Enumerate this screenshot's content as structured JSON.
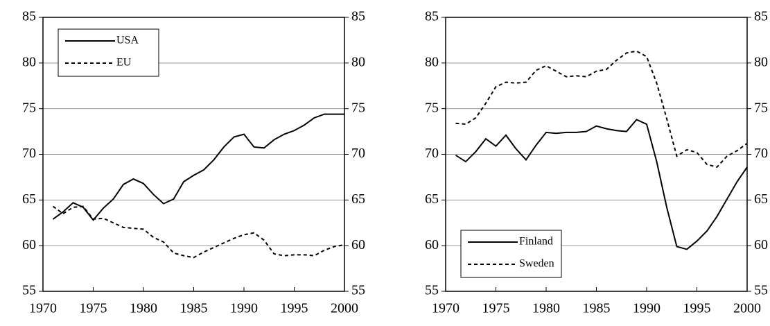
{
  "chart_data": [
    {
      "type": "line",
      "x": [
        1971,
        1972,
        1973,
        1974,
        1975,
        1976,
        1977,
        1978,
        1979,
        1980,
        1981,
        1982,
        1983,
        1984,
        1985,
        1986,
        1987,
        1988,
        1989,
        1990,
        1991,
        1992,
        1993,
        1994,
        1995,
        1996,
        1997,
        1998,
        1999,
        2000
      ],
      "series": [
        {
          "name": "USA",
          "color": "#000000",
          "linestyle": "solid",
          "values": [
            62.9,
            63.7,
            64.7,
            64.2,
            62.8,
            64.1,
            65.1,
            66.7,
            67.3,
            66.8,
            65.6,
            64.6,
            65.1,
            67.0,
            67.7,
            68.3,
            69.4,
            70.8,
            71.9,
            72.2,
            70.8,
            70.7,
            71.6,
            72.2,
            72.6,
            73.2,
            74.0,
            74.4,
            74.4,
            74.4
          ]
        },
        {
          "name": "EU",
          "color": "#000000",
          "linestyle": "dashed",
          "values": [
            64.3,
            63.5,
            64.2,
            64.3,
            62.9,
            63.0,
            62.5,
            62.0,
            61.9,
            61.8,
            60.9,
            60.4,
            59.2,
            58.9,
            58.7,
            59.3,
            59.8,
            60.3,
            60.8,
            61.2,
            61.4,
            60.6,
            59.1,
            58.9,
            59.0,
            59.0,
            58.9,
            59.5,
            59.9,
            60.1
          ]
        }
      ],
      "xlim": [
        1970,
        2000
      ],
      "xticks": [
        1970,
        1975,
        1980,
        1985,
        1990,
        1995,
        2000
      ],
      "ylim": [
        55,
        85
      ],
      "yticks": [
        55,
        60,
        65,
        70,
        75,
        80,
        85
      ],
      "y2lim": [
        55,
        85
      ],
      "y2ticks": [
        55,
        60,
        65,
        70,
        75,
        80,
        85
      ],
      "grid": true,
      "legend": "upper-left"
    },
    {
      "type": "line",
      "x": [
        1971,
        1972,
        1973,
        1974,
        1975,
        1976,
        1977,
        1978,
        1979,
        1980,
        1981,
        1982,
        1983,
        1984,
        1985,
        1986,
        1987,
        1988,
        1989,
        1990,
        1991,
        1992,
        1993,
        1994,
        1995,
        1996,
        1997,
        1998,
        1999,
        2000
      ],
      "series": [
        {
          "name": "Finland",
          "color": "#000000",
          "linestyle": "solid",
          "values": [
            69.9,
            69.2,
            70.3,
            71.7,
            70.9,
            72.1,
            70.6,
            69.4,
            71.0,
            72.4,
            72.3,
            72.4,
            72.4,
            72.5,
            73.1,
            72.8,
            72.6,
            72.5,
            73.8,
            73.3,
            69.2,
            64.2,
            59.9,
            59.6,
            60.5,
            61.6,
            63.2,
            65.1,
            67.0,
            68.6
          ]
        },
        {
          "name": "Sweden",
          "color": "#000000",
          "linestyle": "dashed",
          "values": [
            73.4,
            73.3,
            74.0,
            75.6,
            77.4,
            77.9,
            77.8,
            77.9,
            79.2,
            79.7,
            79.1,
            78.5,
            78.6,
            78.5,
            79.1,
            79.3,
            80.3,
            81.1,
            81.3,
            80.7,
            77.8,
            73.9,
            69.8,
            70.5,
            70.2,
            68.9,
            68.6,
            69.8,
            70.4,
            71.2
          ]
        }
      ],
      "xlim": [
        1970,
        2000
      ],
      "xticks": [
        1970,
        1975,
        1980,
        1985,
        1990,
        1995,
        2000
      ],
      "ylim": [
        55,
        85
      ],
      "yticks": [
        55,
        60,
        65,
        70,
        75,
        80,
        85
      ],
      "y2lim": [
        55,
        85
      ],
      "y2ticks": [
        55,
        60,
        65,
        70,
        75,
        80,
        85
      ],
      "grid": true,
      "legend": "lower-left"
    }
  ]
}
